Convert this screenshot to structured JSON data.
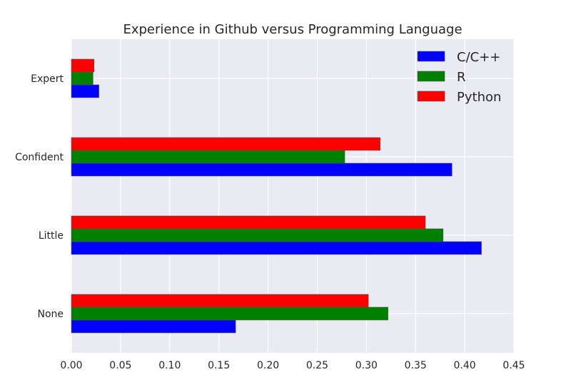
{
  "chart_data": {
    "type": "bar",
    "orientation": "horizontal",
    "title": "Experience in Github versus Programming Language",
    "xlabel": "",
    "ylabel": "",
    "categories": [
      "None",
      "Little",
      "Confident",
      "Expert"
    ],
    "series": [
      {
        "name": "C/C++",
        "color": "#0000ff",
        "values": [
          0.167,
          0.417,
          0.387,
          0.028
        ]
      },
      {
        "name": "R",
        "color": "#008000",
        "values": [
          0.322,
          0.378,
          0.278,
          0.022
        ]
      },
      {
        "name": "Python",
        "color": "#ff0000",
        "values": [
          0.302,
          0.36,
          0.314,
          0.023
        ]
      }
    ],
    "xlim": [
      0,
      0.45
    ],
    "xticks": [
      "0.00",
      "0.05",
      "0.10",
      "0.15",
      "0.20",
      "0.25",
      "0.30",
      "0.35",
      "0.40",
      "0.45"
    ],
    "grid": true,
    "legend_position": "top-right",
    "background": "#eaeaf2"
  }
}
